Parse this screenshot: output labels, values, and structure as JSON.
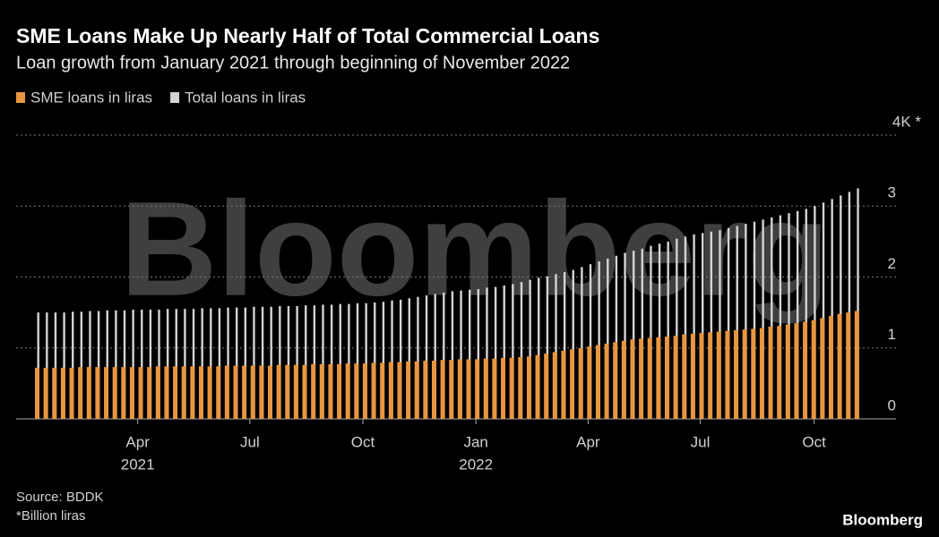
{
  "chart_data": {
    "type": "bar",
    "title": "SME Loans Make Up Nearly Half of Total Commercial Loans",
    "subtitle": "Loan growth from January 2021 through beginning of November 2022",
    "watermark": "Bloomberg",
    "source": "Source: BDDK",
    "note": "*Billion liras",
    "logo": "Bloomberg",
    "categories": [
      null,
      null,
      null,
      null,
      null,
      null,
      null,
      null,
      null,
      null,
      null,
      null,
      null,
      null,
      null,
      null,
      null,
      null,
      null,
      null,
      null,
      null,
      null,
      null,
      null,
      null,
      null,
      null,
      null,
      null,
      null,
      null,
      null,
      null,
      null,
      null,
      null,
      null,
      null,
      null,
      null,
      null,
      null,
      null,
      null,
      null,
      null,
      null,
      null,
      null,
      null,
      null,
      null,
      null,
      null,
      null,
      null,
      null,
      null,
      null,
      null,
      null,
      null,
      null,
      null,
      null,
      null,
      null,
      null,
      null,
      null,
      null,
      null,
      null,
      null,
      null,
      null,
      null,
      null,
      null,
      null,
      null,
      null,
      null,
      null,
      null,
      null,
      null,
      null,
      null,
      null,
      null,
      null,
      null,
      null,
      null
    ],
    "series": [
      {
        "name": "SME loans in liras",
        "color": "#e8963f",
        "values": [
          0.72,
          0.72,
          0.72,
          0.72,
          0.72,
          0.73,
          0.73,
          0.73,
          0.73,
          0.73,
          0.73,
          0.73,
          0.73,
          0.73,
          0.74,
          0.74,
          0.74,
          0.74,
          0.74,
          0.74,
          0.74,
          0.74,
          0.75,
          0.75,
          0.75,
          0.75,
          0.75,
          0.75,
          0.76,
          0.76,
          0.76,
          0.76,
          0.77,
          0.77,
          0.77,
          0.77,
          0.78,
          0.78,
          0.78,
          0.79,
          0.79,
          0.8,
          0.8,
          0.81,
          0.81,
          0.82,
          0.82,
          0.83,
          0.83,
          0.84,
          0.84,
          0.84,
          0.85,
          0.85,
          0.86,
          0.86,
          0.87,
          0.88,
          0.9,
          0.92,
          0.94,
          0.96,
          0.98,
          1.0,
          1.02,
          1.04,
          1.06,
          1.08,
          1.1,
          1.12,
          1.13,
          1.14,
          1.15,
          1.16,
          1.17,
          1.19,
          1.2,
          1.21,
          1.22,
          1.23,
          1.24,
          1.25,
          1.26,
          1.27,
          1.28,
          1.3,
          1.31,
          1.33,
          1.35,
          1.37,
          1.39,
          1.42,
          1.45,
          1.48,
          1.5,
          1.52
        ]
      },
      {
        "name": "Total loans in liras",
        "color": "#d4d4d4",
        "values": [
          1.5,
          1.5,
          1.5,
          1.5,
          1.51,
          1.51,
          1.52,
          1.52,
          1.53,
          1.53,
          1.53,
          1.54,
          1.54,
          1.54,
          1.54,
          1.55,
          1.55,
          1.55,
          1.55,
          1.56,
          1.56,
          1.56,
          1.57,
          1.57,
          1.57,
          1.58,
          1.58,
          1.58,
          1.59,
          1.59,
          1.59,
          1.6,
          1.6,
          1.61,
          1.61,
          1.62,
          1.62,
          1.63,
          1.63,
          1.64,
          1.65,
          1.67,
          1.68,
          1.7,
          1.72,
          1.74,
          1.76,
          1.78,
          1.8,
          1.81,
          1.82,
          1.83,
          1.85,
          1.86,
          1.88,
          1.9,
          1.93,
          1.96,
          1.99,
          2.01,
          2.04,
          2.07,
          2.1,
          2.14,
          2.18,
          2.22,
          2.26,
          2.3,
          2.34,
          2.37,
          2.4,
          2.44,
          2.47,
          2.5,
          2.54,
          2.57,
          2.6,
          2.62,
          2.64,
          2.66,
          2.69,
          2.72,
          2.75,
          2.78,
          2.81,
          2.84,
          2.87,
          2.9,
          2.93,
          2.96,
          3.0,
          3.05,
          3.1,
          3.15,
          3.2,
          3.25
        ]
      }
    ],
    "ylim": [
      0,
      4
    ],
    "yticks": [
      0,
      1,
      2,
      3,
      {
        "value": 4,
        "label": "4K *"
      }
    ],
    "xticks": [
      {
        "value": 11.7,
        "label": "Apr"
      },
      {
        "value": 24.7,
        "label": "Jul"
      },
      {
        "value": 37.8,
        "label": "Oct"
      },
      {
        "value": 50.9,
        "label": "Jan"
      },
      {
        "value": 63.9,
        "label": "Apr"
      },
      {
        "value": 76.9,
        "label": "Jul"
      },
      {
        "value": 90.1,
        "label": "Oct"
      }
    ],
    "xtick_years": [
      {
        "value": 11.7,
        "label": "2021"
      },
      {
        "value": 50.9,
        "label": "2022"
      }
    ],
    "grid": true,
    "legend": "top-left"
  }
}
